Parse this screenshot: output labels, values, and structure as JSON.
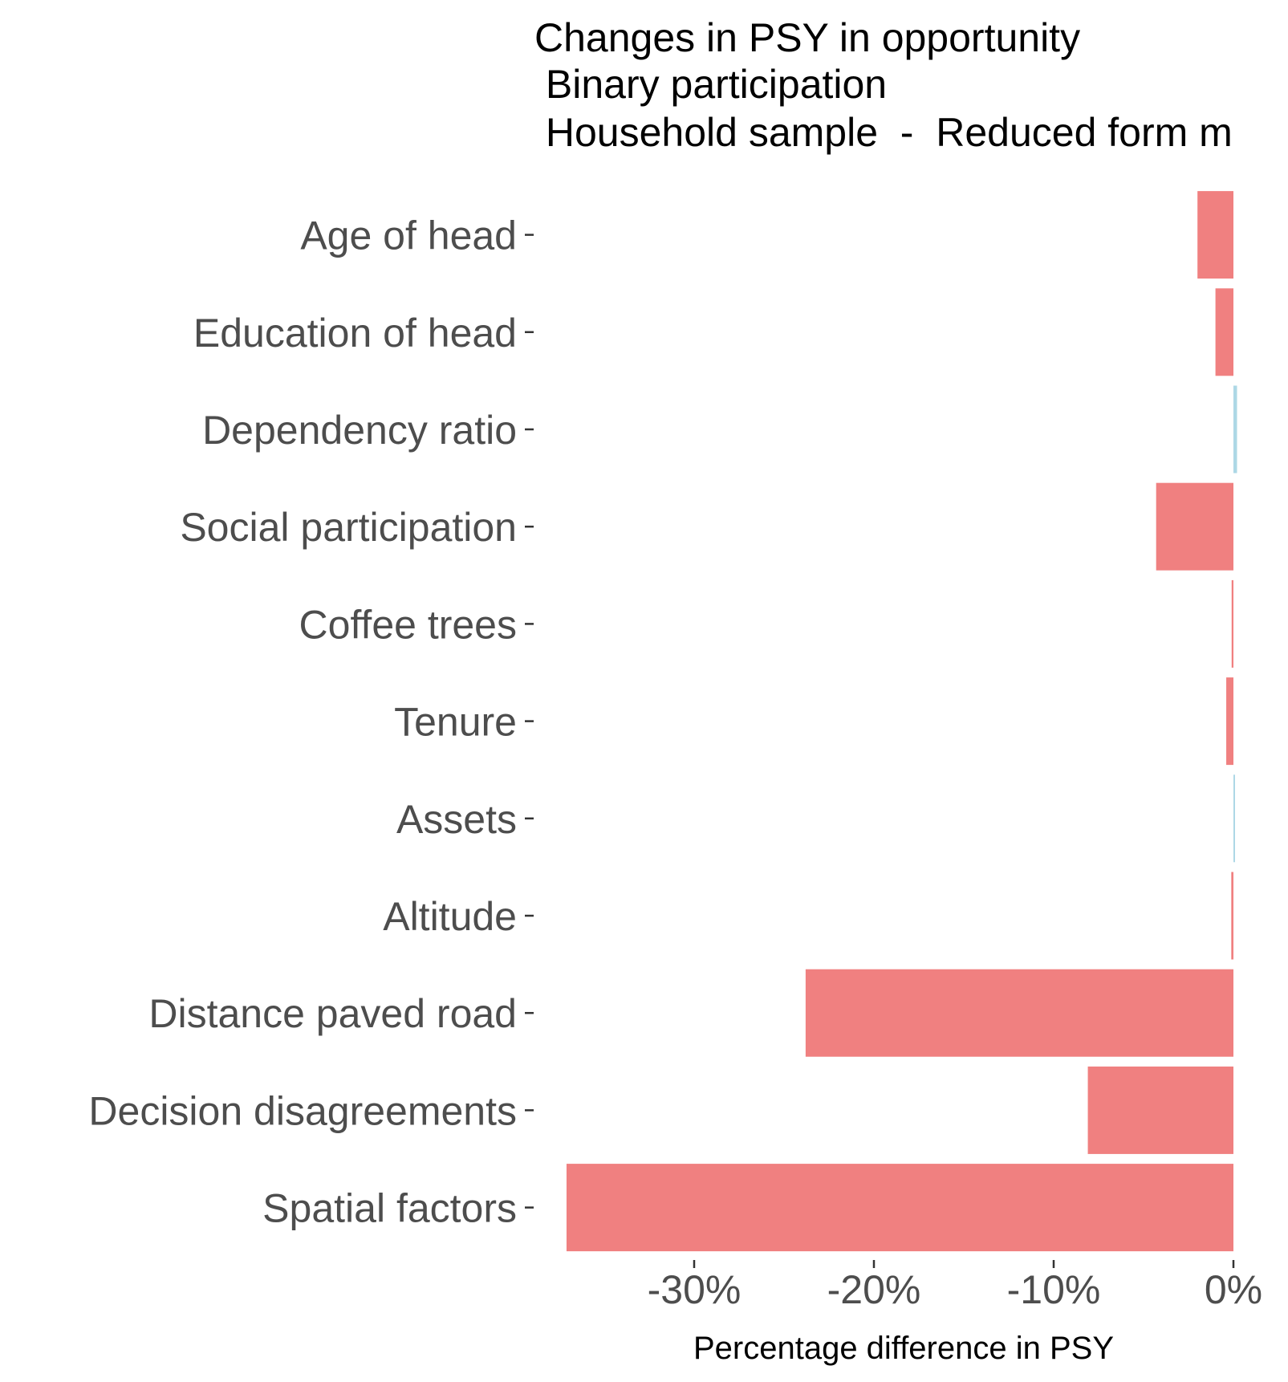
{
  "chart_data": {
    "type": "bar",
    "orientation": "horizontal",
    "title_lines": [
      "Changes in PSY in opportunity",
      " Binary participation",
      " Household sample  -  Reduced form m"
    ],
    "xlabel": "Percentage difference in PSY",
    "ylabel": "",
    "categories": [
      "Age of head",
      "Education of head",
      "Dependency ratio",
      "Social participation",
      "Coffee trees",
      "Tenure",
      "Assets",
      "Altitude",
      "Distance paved road",
      "Decision disagreements",
      "Spatial factors"
    ],
    "values": [
      -2.0,
      -1.0,
      0.2,
      -4.3,
      -0.1,
      -0.4,
      0.03,
      -0.12,
      -23.8,
      -8.1,
      -37.1
    ],
    "xlim": [
      -37.5,
      0.3
    ],
    "xticks": [
      -30,
      -20,
      -10,
      0
    ],
    "xtick_labels": [
      "-30%",
      "-20%",
      "-10%",
      "0%"
    ],
    "colors": {
      "negative": "#F08080",
      "positive": "#ADD8E6"
    },
    "grid": false,
    "legend": "none"
  }
}
